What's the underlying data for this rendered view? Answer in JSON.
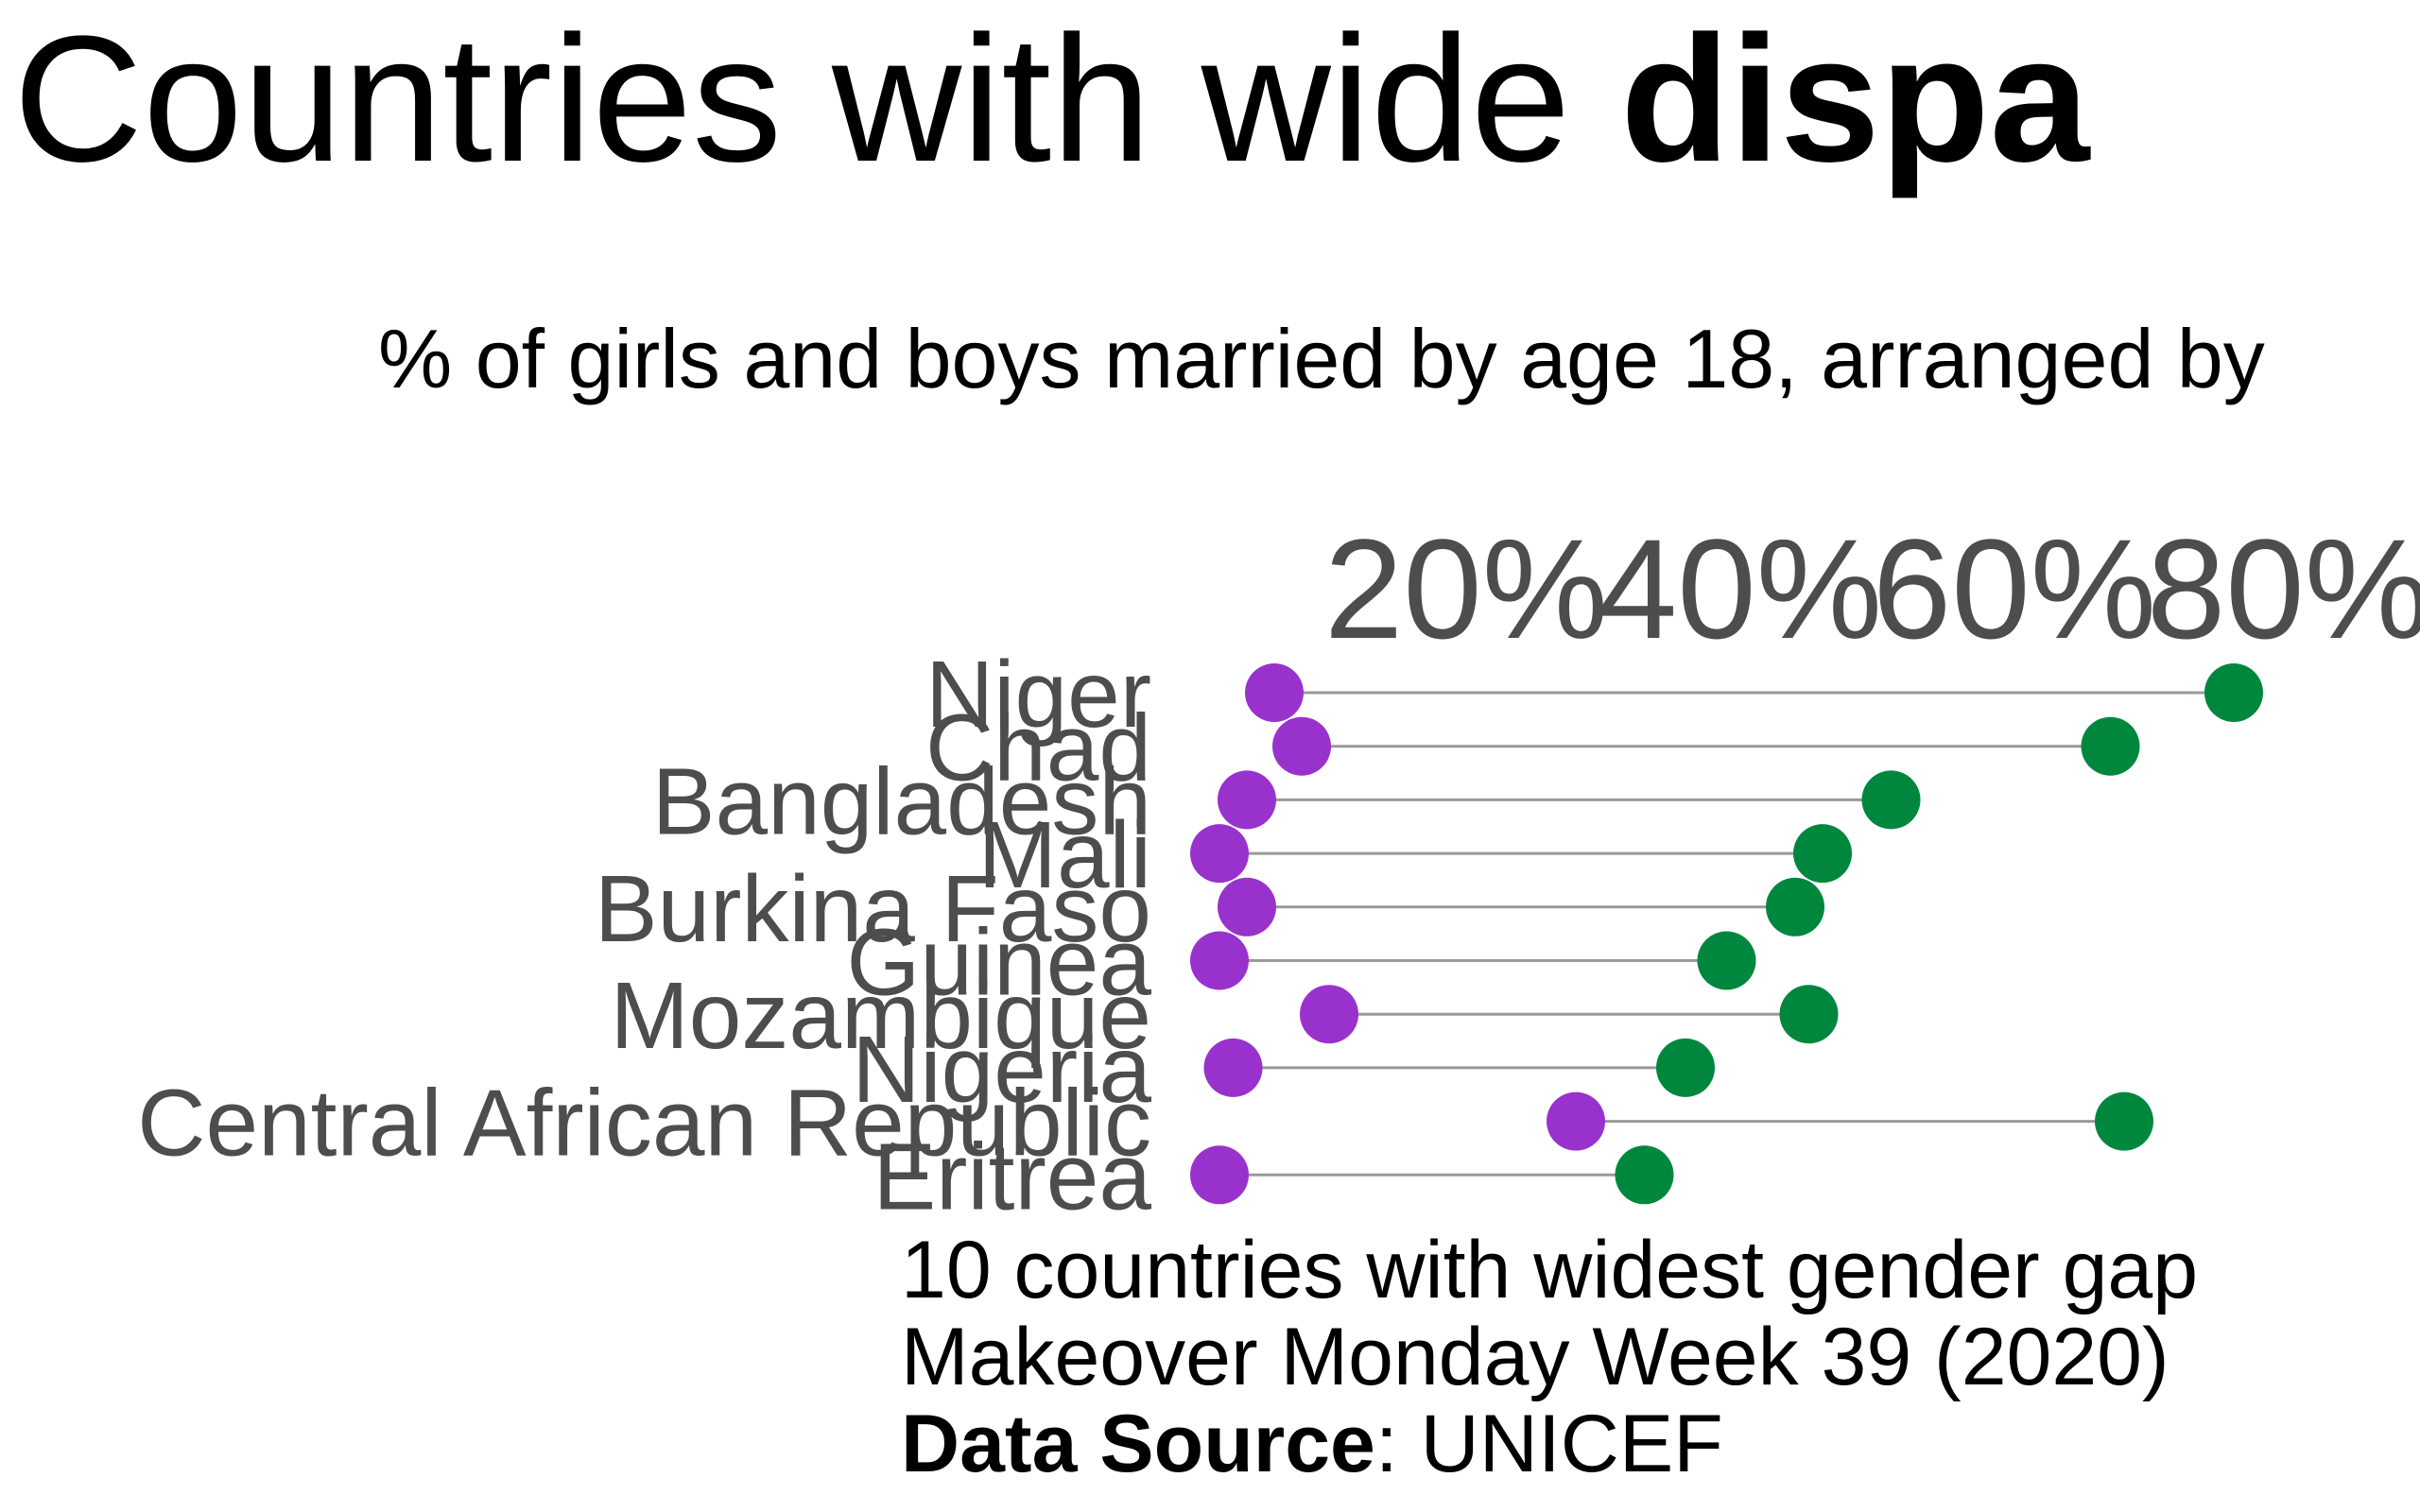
{
  "title": {
    "text": "Countries with wide ",
    "bold_text": "dispa"
  },
  "subtitle": "% of girls and boys married by age 18, arranged by",
  "caption": {
    "line1": "10 countries with widest gender gap",
    "line2": "Makeover Monday Week 39 (2020)",
    "source_label": "Data Source",
    "source_value": ": UNICEF"
  },
  "chart_data": {
    "type": "dumbbell",
    "x_ticks": [
      "20%",
      "40%",
      "60%",
      "80%"
    ],
    "x_tick_values": [
      20,
      40,
      60,
      80
    ],
    "xlim": [
      0,
      100
    ],
    "unit": "%",
    "categories": [
      "Niger",
      "Chad",
      "Bangladesh",
      "Mali",
      "Burkina Faso",
      "Guinea",
      "Mozambique",
      "Nigeria",
      "Central African Republic",
      "Eritrea"
    ],
    "series": [
      {
        "color": "#9932cc",
        "values": [
          6,
          8,
          4,
          2,
          4,
          2,
          10,
          3,
          28,
          2
        ]
      },
      {
        "color": "#00873e",
        "values": [
          76,
          67,
          51,
          46,
          44,
          39,
          45,
          36,
          68,
          33
        ]
      }
    ],
    "connector_color": "#999999",
    "grid": false,
    "legend": "none"
  }
}
